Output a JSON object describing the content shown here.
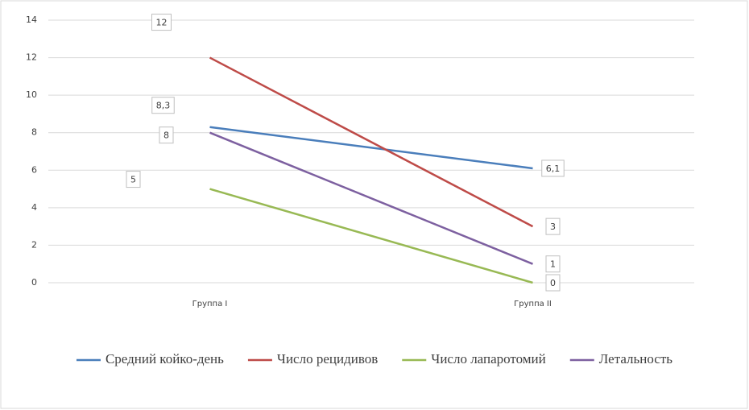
{
  "chart_data": {
    "type": "line",
    "categories": [
      "Группа I",
      "Группа II"
    ],
    "series": [
      {
        "name": "Средний койко-день",
        "color": "#4a7ebb",
        "values": [
          8.3,
          6.1
        ],
        "value_labels": [
          "8,3",
          "6,1"
        ]
      },
      {
        "name": "Число рецидивов",
        "color": "#be4b48",
        "values": [
          12,
          3
        ]
      },
      {
        "name": "Число лапаротомий",
        "color": "#98b954",
        "values": [
          5,
          0
        ]
      },
      {
        "name": "Летальность",
        "color": "#7d60a0",
        "values": [
          8,
          1
        ]
      }
    ],
    "ylim": [
      0,
      14
    ],
    "yticks": [
      0,
      2,
      4,
      6,
      8,
      10,
      12,
      14
    ],
    "grid": true,
    "legend": "bottom"
  }
}
